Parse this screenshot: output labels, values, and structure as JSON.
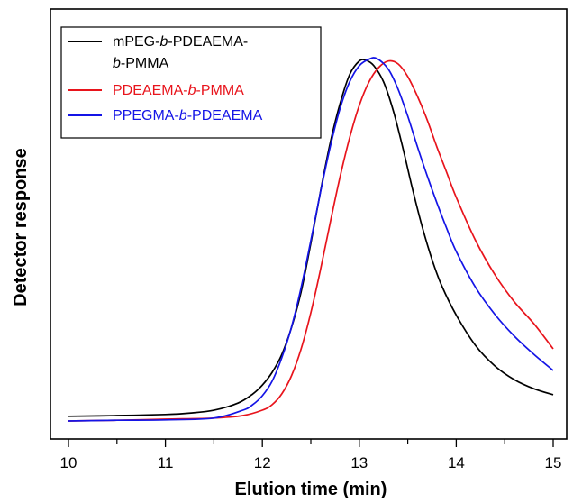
{
  "chart_data": {
    "type": "line",
    "xlabel": "Elution time (min)",
    "ylabel": "Detector response",
    "xlim": [
      10,
      15
    ],
    "ylim": [
      0,
      1.06
    ],
    "x_ticks": [
      "10",
      "11",
      "12",
      "13",
      "14",
      "15"
    ],
    "y_ticks_shown": false,
    "legend_position": "top-left",
    "series": [
      {
        "name_parts": [
          "mPEG-",
          "b",
          "-PDEAEMA-",
          "b",
          "-PMMA"
        ],
        "color": "#000000",
        "x": [
          10.0,
          10.5,
          11.0,
          11.25,
          11.5,
          11.75,
          11.9,
          12.0,
          12.1,
          12.2,
          12.3,
          12.4,
          12.5,
          12.6,
          12.7,
          12.8,
          12.9,
          13.0,
          13.07,
          13.15,
          13.25,
          13.35,
          13.45,
          13.55,
          13.65,
          13.75,
          13.85,
          14.0,
          14.2,
          14.4,
          14.6,
          14.8,
          15.0
        ],
        "y": [
          0.008,
          0.01,
          0.013,
          0.017,
          0.025,
          0.045,
          0.07,
          0.095,
          0.13,
          0.18,
          0.255,
          0.355,
          0.49,
          0.635,
          0.77,
          0.878,
          0.96,
          0.998,
          1.0,
          0.985,
          0.94,
          0.86,
          0.755,
          0.64,
          0.535,
          0.445,
          0.372,
          0.29,
          0.205,
          0.148,
          0.11,
          0.085,
          0.068
        ]
      },
      {
        "name_parts": [
          "PDEAEMA-",
          "b",
          "-PMMA"
        ],
        "color": "#e8141c",
        "x": [
          10.0,
          10.5,
          11.0,
          11.5,
          11.8,
          12.0,
          12.1,
          12.2,
          12.3,
          12.4,
          12.5,
          12.6,
          12.7,
          12.8,
          12.9,
          13.0,
          13.1,
          13.2,
          13.3,
          13.4,
          13.5,
          13.6,
          13.7,
          13.8,
          13.9,
          14.0,
          14.2,
          14.4,
          14.6,
          14.8,
          15.0
        ],
        "y": [
          0.0,
          0.002,
          0.005,
          0.008,
          0.015,
          0.03,
          0.045,
          0.075,
          0.125,
          0.2,
          0.3,
          0.42,
          0.55,
          0.675,
          0.785,
          0.875,
          0.94,
          0.98,
          0.998,
          0.99,
          0.955,
          0.9,
          0.835,
          0.76,
          0.69,
          0.62,
          0.5,
          0.405,
          0.33,
          0.27,
          0.2
        ]
      },
      {
        "name_parts": [
          "PPEGMA-",
          "b",
          "-PDEAEMA"
        ],
        "color": "#1414e6",
        "x": [
          10.0,
          10.5,
          11.0,
          11.5,
          11.8,
          11.9,
          12.0,
          12.1,
          12.2,
          12.3,
          12.4,
          12.5,
          12.6,
          12.7,
          12.8,
          12.9,
          13.0,
          13.1,
          13.18,
          13.3,
          13.4,
          13.5,
          13.6,
          13.7,
          13.8,
          13.9,
          14.0,
          14.2,
          14.4,
          14.6,
          14.8,
          15.0
        ],
        "y": [
          0.0,
          0.002,
          0.003,
          0.008,
          0.03,
          0.045,
          0.07,
          0.11,
          0.175,
          0.26,
          0.37,
          0.5,
          0.635,
          0.76,
          0.865,
          0.94,
          0.985,
          1.003,
          1.005,
          0.975,
          0.92,
          0.845,
          0.76,
          0.68,
          0.605,
          0.535,
          0.47,
          0.37,
          0.295,
          0.235,
          0.185,
          0.14
        ]
      }
    ]
  }
}
